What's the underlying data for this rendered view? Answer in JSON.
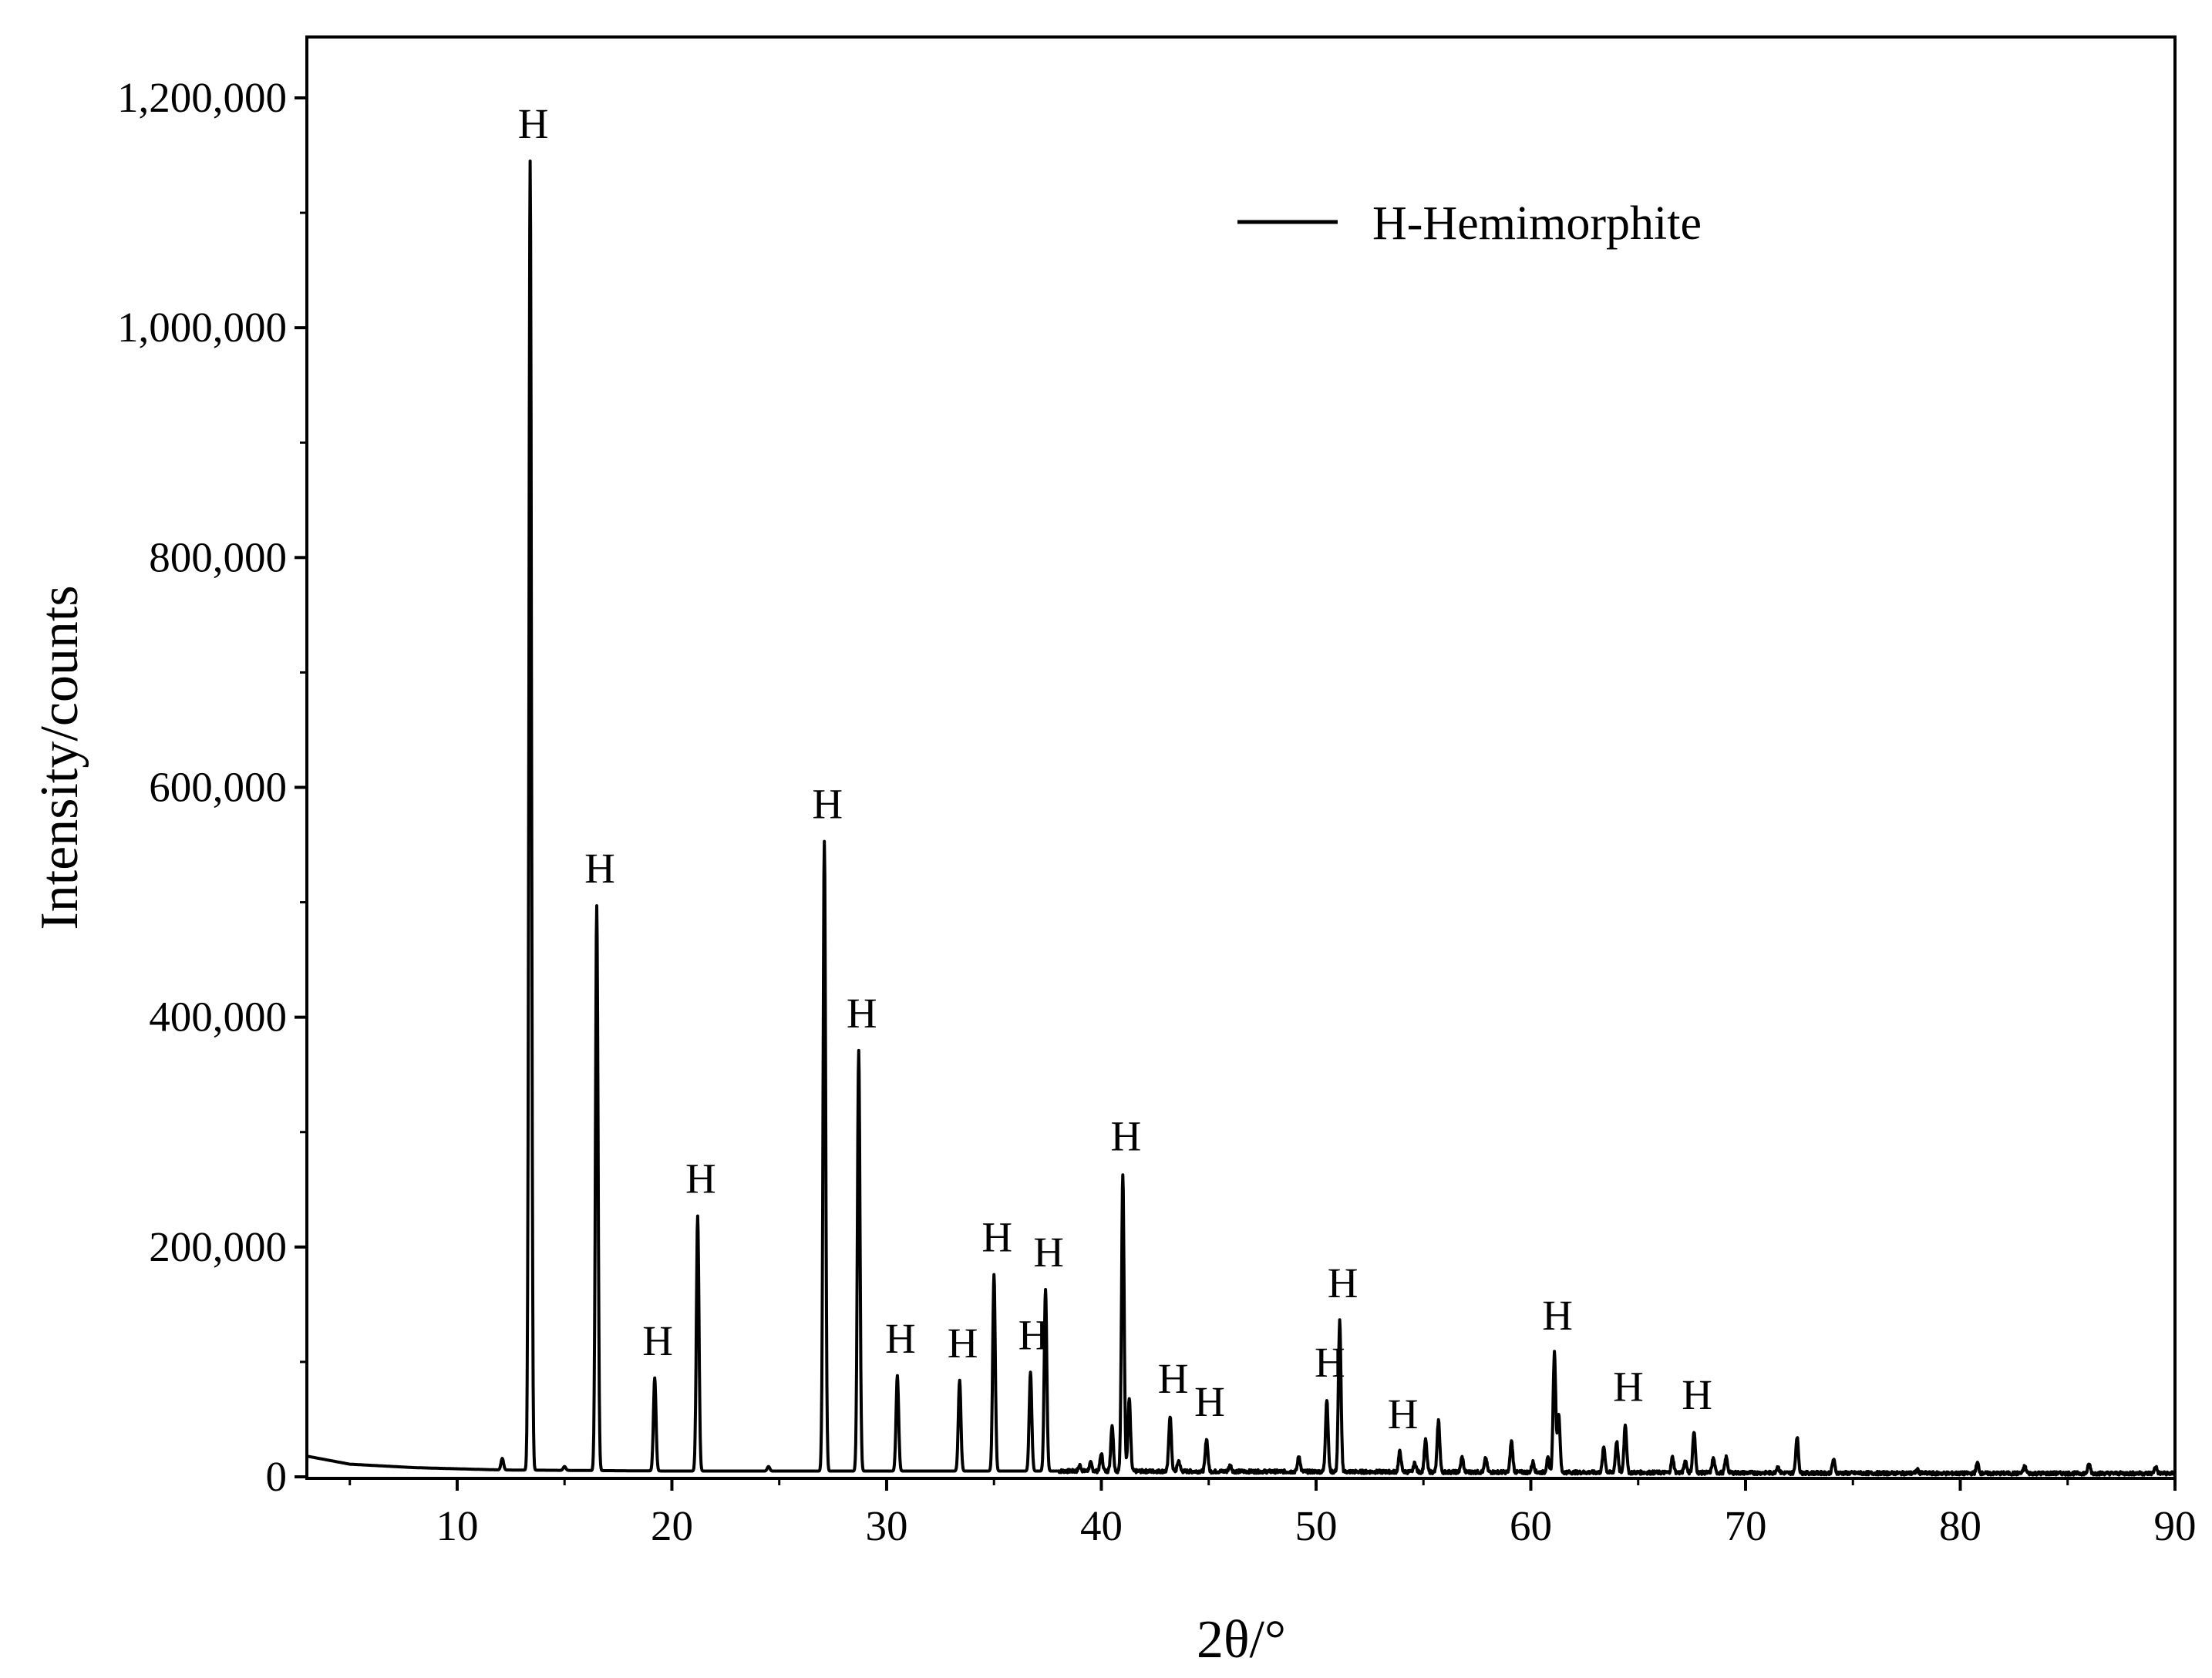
{
  "chart_data": {
    "type": "line",
    "title": "",
    "xlabel": "2θ/°",
    "ylabel": "Intensity/counts",
    "xlim": [
      3,
      90
    ],
    "ylim": [
      0,
      1250000
    ],
    "x_ticks": [
      10,
      20,
      30,
      40,
      50,
      60,
      70,
      80,
      90
    ],
    "x_tick_labels": [
      "10",
      "20",
      "30",
      "40",
      "50",
      "60",
      "70",
      "80",
      "90"
    ],
    "y_ticks": [
      0,
      200000,
      400000,
      600000,
      800000,
      1000000,
      1200000
    ],
    "y_tick_labels": [
      "0",
      "200,000",
      "400,000",
      "600,000",
      "800,000",
      "1,000,000",
      "1,200,000"
    ],
    "grid": false,
    "legend": {
      "position": "top-right",
      "entries": [
        "H-Hemimorphite"
      ]
    },
    "series": [
      {
        "name": "H-Hemimorphite",
        "color": "#000000",
        "baseline": [
          [
            3,
            18000
          ],
          [
            5,
            11000
          ],
          [
            8,
            8000
          ],
          [
            12,
            6000
          ],
          [
            20,
            5000
          ],
          [
            30,
            5000
          ],
          [
            40,
            5000
          ],
          [
            50,
            4500
          ],
          [
            60,
            4000
          ],
          [
            70,
            3500
          ],
          [
            80,
            3000
          ],
          [
            90,
            3000
          ]
        ],
        "peaks": [
          {
            "x": 12.1,
            "y": 16000
          },
          {
            "x": 13.4,
            "y": 1145000
          },
          {
            "x": 15.0,
            "y": 9000
          },
          {
            "x": 16.5,
            "y": 497000
          },
          {
            "x": 19.2,
            "y": 86000
          },
          {
            "x": 21.2,
            "y": 227000
          },
          {
            "x": 24.5,
            "y": 9000
          },
          {
            "x": 27.1,
            "y": 553000
          },
          {
            "x": 28.7,
            "y": 371000
          },
          {
            "x": 30.5,
            "y": 88000
          },
          {
            "x": 33.4,
            "y": 84000
          },
          {
            "x": 35.0,
            "y": 176000
          },
          {
            "x": 36.7,
            "y": 91000
          },
          {
            "x": 37.4,
            "y": 163000
          },
          {
            "x": 39.0,
            "y": 10000
          },
          {
            "x": 39.5,
            "y": 12000
          },
          {
            "x": 40.0,
            "y": 20000
          },
          {
            "x": 40.5,
            "y": 45000
          },
          {
            "x": 41.0,
            "y": 264000
          },
          {
            "x": 41.3,
            "y": 68000
          },
          {
            "x": 43.2,
            "y": 53000
          },
          {
            "x": 43.6,
            "y": 14000
          },
          {
            "x": 44.9,
            "y": 33000
          },
          {
            "x": 46.0,
            "y": 10000
          },
          {
            "x": 49.2,
            "y": 18000
          },
          {
            "x": 50.5,
            "y": 67000
          },
          {
            "x": 51.1,
            "y": 136000
          },
          {
            "x": 53.9,
            "y": 22000
          },
          {
            "x": 54.6,
            "y": 12000
          },
          {
            "x": 55.1,
            "y": 32000
          },
          {
            "x": 55.7,
            "y": 49000
          },
          {
            "x": 56.8,
            "y": 17000
          },
          {
            "x": 57.9,
            "y": 16000
          },
          {
            "x": 59.1,
            "y": 31000
          },
          {
            "x": 60.1,
            "y": 13000
          },
          {
            "x": 60.8,
            "y": 16000
          },
          {
            "x": 61.1,
            "y": 108000
          },
          {
            "x": 61.3,
            "y": 55000
          },
          {
            "x": 63.4,
            "y": 26000
          },
          {
            "x": 64.0,
            "y": 31000
          },
          {
            "x": 64.4,
            "y": 46000
          },
          {
            "x": 66.6,
            "y": 17000
          },
          {
            "x": 67.2,
            "y": 14000
          },
          {
            "x": 67.6,
            "y": 39000
          },
          {
            "x": 68.5,
            "y": 16000
          },
          {
            "x": 69.1,
            "y": 17000
          },
          {
            "x": 71.5,
            "y": 9000
          },
          {
            "x": 72.4,
            "y": 35000
          },
          {
            "x": 74.1,
            "y": 15000
          },
          {
            "x": 78.0,
            "y": 6000
          },
          {
            "x": 80.8,
            "y": 12000
          },
          {
            "x": 83.0,
            "y": 9000
          },
          {
            "x": 86.0,
            "y": 11000
          },
          {
            "x": 89.1,
            "y": 9000
          }
        ]
      }
    ],
    "annotations": [
      {
        "text": "H",
        "x": 13.4,
        "y": 1145000
      },
      {
        "text": "H",
        "x": 16.5,
        "y": 497000
      },
      {
        "text": "H",
        "x": 19.2,
        "y": 86000
      },
      {
        "text": "H",
        "x": 21.2,
        "y": 227000
      },
      {
        "text": "H",
        "x": 27.1,
        "y": 553000
      },
      {
        "text": "H",
        "x": 28.7,
        "y": 371000
      },
      {
        "text": "H",
        "x": 30.5,
        "y": 88000
      },
      {
        "text": "H",
        "x": 33.4,
        "y": 84000
      },
      {
        "text": "H",
        "x": 35.0,
        "y": 176000
      },
      {
        "text": "H",
        "x": 36.7,
        "y": 91000
      },
      {
        "text": "H",
        "x": 37.4,
        "y": 163000
      },
      {
        "text": "H",
        "x": 41.0,
        "y": 264000
      },
      {
        "text": "H",
        "x": 43.2,
        "y": 53000
      },
      {
        "text": "H",
        "x": 44.9,
        "y": 33000
      },
      {
        "text": "H",
        "x": 50.5,
        "y": 67000
      },
      {
        "text": "H",
        "x": 51.1,
        "y": 136000
      },
      {
        "text": "H",
        "x": 53.9,
        "y": 22000
      },
      {
        "text": "H",
        "x": 61.1,
        "y": 108000
      },
      {
        "text": "H",
        "x": 64.4,
        "y": 46000
      },
      {
        "text": "H",
        "x": 67.6,
        "y": 39000
      }
    ]
  }
}
